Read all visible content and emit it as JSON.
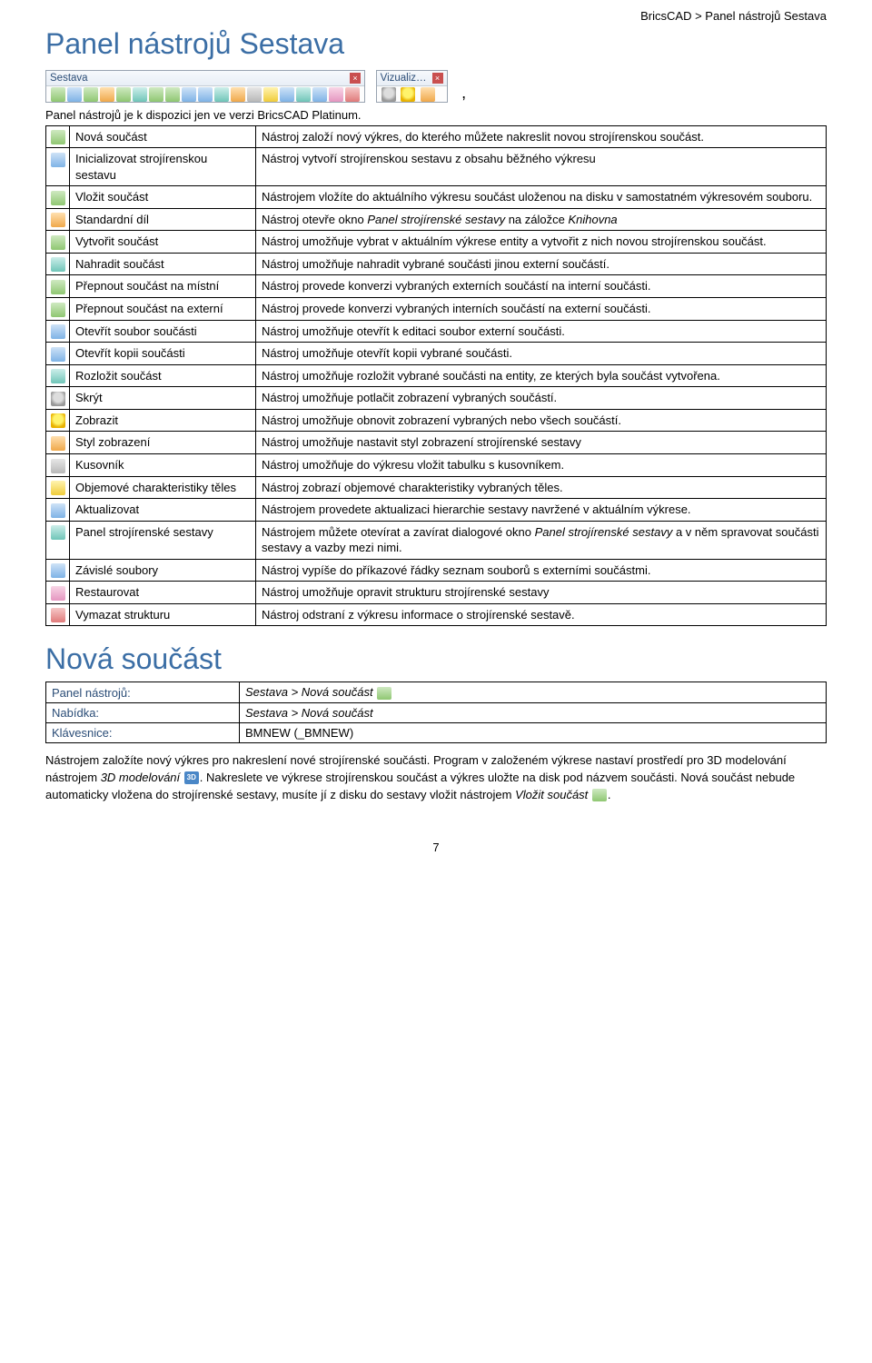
{
  "breadcrumb": "BricsCAD > Panel nástrojů Sestava",
  "title": "Panel nástrojů Sestava",
  "toolbar1": {
    "title": "Sestava"
  },
  "toolbar2": {
    "title": "Vizualiz…"
  },
  "intro": "Panel nástrojů je k dispozici jen ve verzi BricsCAD Platinum.",
  "rows": [
    {
      "icon": "c-green",
      "name": "Nová součást",
      "desc": "Nástroj založí nový výkres, do kterého můžete nakreslit novou strojírenskou součást."
    },
    {
      "icon": "c-blue",
      "name": "Inicializovat strojírenskou sestavu",
      "desc": "Nástroj vytvoří strojírenskou sestavu z obsahu běžného výkresu"
    },
    {
      "icon": "c-green",
      "name": "Vložit součást",
      "desc": "Nástrojem vložíte do aktuálního výkresu součást uloženou na disku v samostatném výkresovém souboru."
    },
    {
      "icon": "c-orange",
      "name": "Standardní díl",
      "desc": "Nástroj otevře okno <i>Panel strojírenské sestavy</i> na záložce <i>Knihovna</i>"
    },
    {
      "icon": "c-green",
      "name": "Vytvořit součást",
      "desc": "Nástroj umožňuje vybrat v aktuálním výkrese entity a vytvořit z nich novou strojírenskou součást."
    },
    {
      "icon": "c-teal",
      "name": "Nahradit součást",
      "desc": "Nástroj umožňuje nahradit vybrané součásti jinou externí součástí."
    },
    {
      "icon": "c-green",
      "name": "Přepnout součást na místní",
      "desc": "Nástroj provede konverzi vybraných externích součástí na interní součásti."
    },
    {
      "icon": "c-green",
      "name": "Přepnout součást na externí",
      "desc": "Nástroj provede konverzi vybraných interních součástí na externí součásti."
    },
    {
      "icon": "c-blue",
      "name": "Otevřít soubor součásti",
      "desc": "Nástroj umožňuje otevřít k editaci soubor externí součásti."
    },
    {
      "icon": "c-blue",
      "name": "Otevřít kopii součásti",
      "desc": "Nástroj umožňuje otevřít kopii vybrané součásti."
    },
    {
      "icon": "c-teal",
      "name": "Rozložit součást",
      "desc": "Nástroj umožňuje rozložit vybrané součásti na entity, ze kterých byla součást vytvořena."
    },
    {
      "icon": "c-bulb-off",
      "name": "Skrýt",
      "desc": "Nástroj umožňuje potlačit zobrazení vybraných součástí."
    },
    {
      "icon": "c-bulb-on",
      "name": "Zobrazit",
      "desc": "Nástroj umožňuje obnovit zobrazení vybraných nebo všech součástí."
    },
    {
      "icon": "c-orange",
      "name": "Styl zobrazení",
      "desc": "Nástroj umožňuje nastavit styl zobrazení strojírenské sestavy"
    },
    {
      "icon": "c-gray",
      "name": "Kusovník",
      "desc": "Nástroj umožňuje do výkresu vložit tabulku s kusovníkem."
    },
    {
      "icon": "c-yel",
      "name": "Objemové charakteristiky těles",
      "desc": "Nástroj zobrazí objemové charakteristiky vybraných těles."
    },
    {
      "icon": "c-blue",
      "name": "Aktualizovat",
      "desc": "Nástrojem provedete aktualizaci hierarchie sestavy navržené v aktuálním výkrese."
    },
    {
      "icon": "c-teal",
      "name": "Panel strojírenské sestavy",
      "desc": "Nástrojem můžete otevírat a zavírat dialogové okno <i>Panel strojírenské sestavy</i> a v něm spravovat součásti sestavy a vazby mezi nimi."
    },
    {
      "icon": "c-blue",
      "name": "Závislé soubory",
      "desc": "Nástroj vypíše do příkazové řádky seznam souborů s externími součástmi."
    },
    {
      "icon": "c-pink",
      "name": "Restaurovat",
      "desc": "Nástroj umožňuje opravit strukturu strojírenské sestavy"
    },
    {
      "icon": "c-red",
      "name": "Vymazat strukturu",
      "desc": "Nástroj odstraní z výkresu informace o strojírenské sestavě."
    }
  ],
  "section": {
    "title": "Nová součást",
    "info": [
      {
        "label": "Panel nástrojů:",
        "value": "Sestava > Nová součást",
        "icon": "c-green"
      },
      {
        "label": "Nabídka:",
        "value": "Sestava > Nová součást"
      },
      {
        "label": "Klávesnice:",
        "value": "BMNEW (_BMNEW)"
      }
    ],
    "body_a": "Nástrojem založíte nový výkres pro nakreslení nové strojírenské součásti. Program v založeném výkrese nastaví prostředí pro 3D modelování nástrojem ",
    "body_b": "3D modelování",
    "body_c": ". Nakreslete ve výkrese strojírenskou součást a výkres uložte na disk pod názvem součásti. Nová součást nebude automaticky vložena do strojírenské sestavy, musíte jí z disku do sestavy vložit nástrojem ",
    "body_d": "Vložit součást",
    "body_e": "."
  },
  "pagenum": "7"
}
